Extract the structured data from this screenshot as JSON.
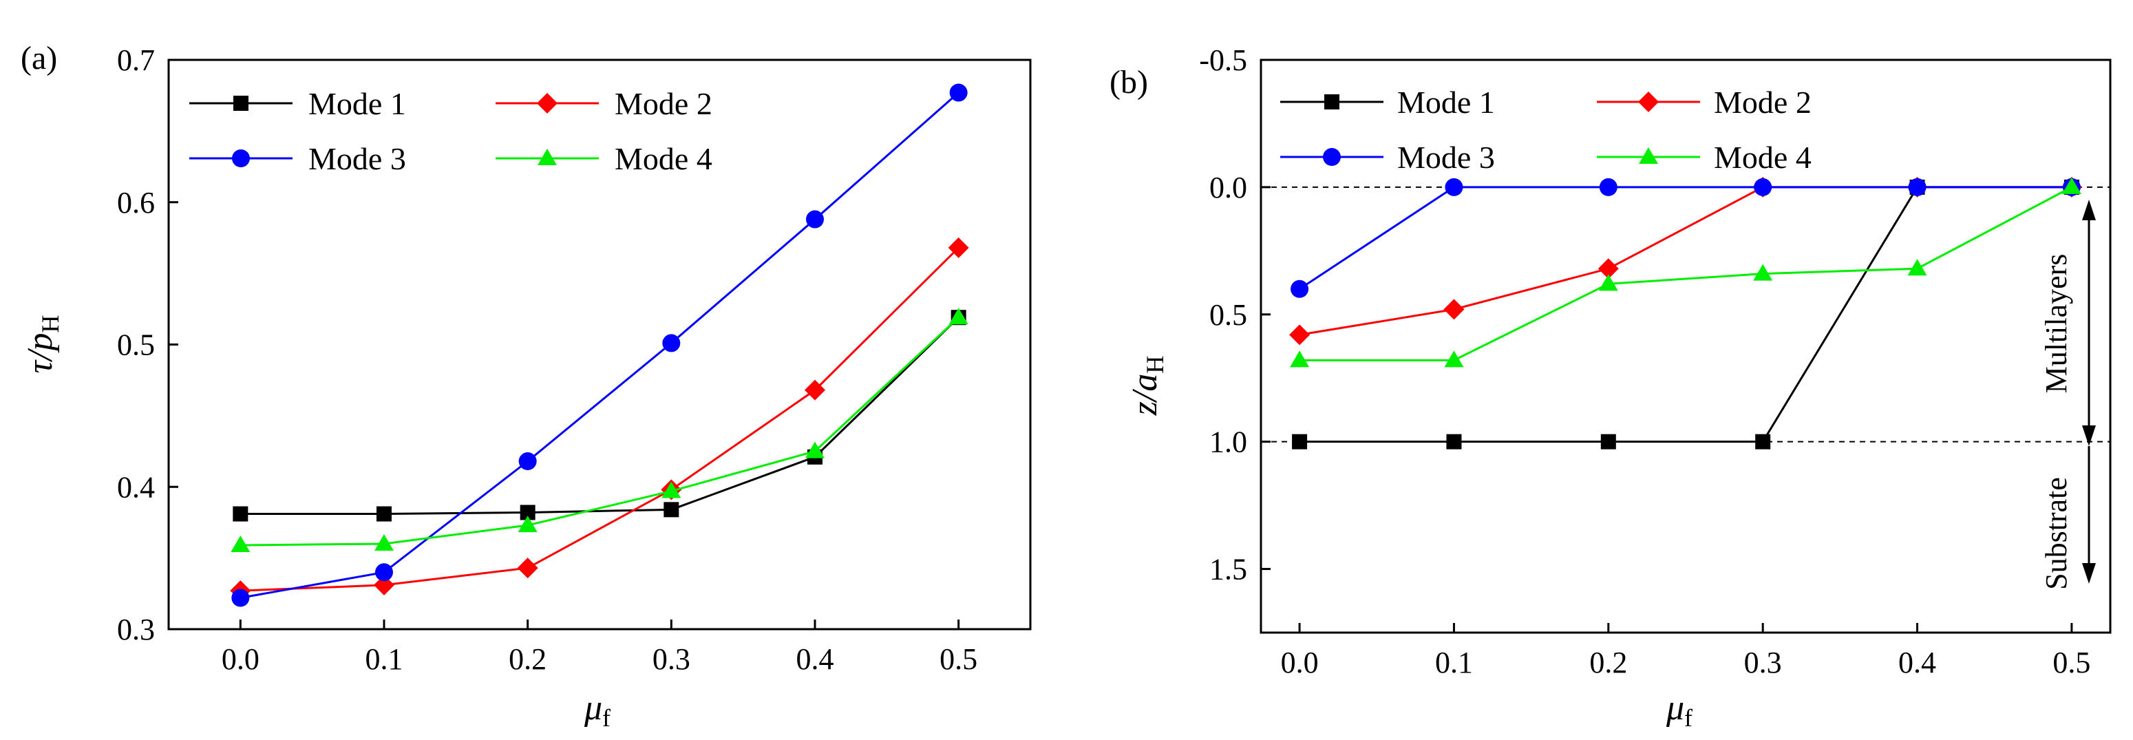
{
  "chart_data": [
    {
      "type": "line",
      "panel_label": "(a)",
      "xlabel": {
        "main": "μ",
        "sub": "f"
      },
      "ylabel": {
        "main": "τ/p",
        "sub": "H"
      },
      "x": [
        0.0,
        0.1,
        0.2,
        0.3,
        0.4,
        0.5
      ],
      "xticks": [
        "0.0",
        "0.1",
        "0.2",
        "0.3",
        "0.4",
        "0.5"
      ],
      "xlim": [
        -0.05,
        0.55
      ],
      "ylim": [
        0.3,
        0.7
      ],
      "yticks": [
        "0.3",
        "0.4",
        "0.5",
        "0.6",
        "0.7"
      ],
      "legend": "top-left",
      "series": [
        {
          "name": "Mode 1",
          "color": "#000000",
          "marker": "square",
          "values": [
            0.381,
            0.381,
            0.382,
            0.384,
            0.421,
            0.519
          ]
        },
        {
          "name": "Mode 2",
          "color": "#ff0000",
          "marker": "diamond",
          "values": [
            0.327,
            0.331,
            0.343,
            0.398,
            0.468,
            0.568
          ]
        },
        {
          "name": "Mode 3",
          "color": "#0000ff",
          "marker": "circle",
          "values": [
            0.322,
            0.34,
            0.418,
            0.501,
            0.588,
            0.677
          ]
        },
        {
          "name": "Mode 4",
          "color": "#00ee00",
          "marker": "triangle",
          "values": [
            0.359,
            0.36,
            0.373,
            0.397,
            0.425,
            0.519
          ]
        }
      ]
    },
    {
      "type": "line",
      "panel_label": "(b)",
      "xlabel": {
        "main": "μ",
        "sub": "f"
      },
      "ylabel": {
        "main": "z/a",
        "sub": "H"
      },
      "x": [
        0.0,
        0.1,
        0.2,
        0.3,
        0.4,
        0.5
      ],
      "xticks": [
        "0.0",
        "0.1",
        "0.2",
        "0.3",
        "0.4",
        "0.5"
      ],
      "xlim": [
        -0.025,
        0.525
      ],
      "ylim": [
        -0.5,
        1.75
      ],
      "y_inverted": true,
      "yticks": [
        "-0.5",
        "0.0",
        "0.5",
        "1.0",
        "1.5"
      ],
      "legend": "top",
      "reference_lines": [
        0.0,
        1.0
      ],
      "regions": [
        {
          "label": "Multilayers",
          "from": 0.0,
          "to": 1.0
        },
        {
          "label": "Substrate",
          "from": 1.0,
          "to": 1.55
        }
      ],
      "series": [
        {
          "name": "Mode 1",
          "color": "#000000",
          "marker": "square",
          "values": [
            1.0,
            1.0,
            1.0,
            1.0,
            0.0,
            0.0
          ]
        },
        {
          "name": "Mode 2",
          "color": "#ff0000",
          "marker": "diamond",
          "values": [
            0.58,
            0.48,
            0.32,
            0.0,
            0.0,
            0.0
          ]
        },
        {
          "name": "Mode 3",
          "color": "#0000ff",
          "marker": "circle",
          "values": [
            0.4,
            0.0,
            0.0,
            0.0,
            0.0,
            0.0
          ]
        },
        {
          "name": "Mode 4",
          "color": "#00ee00",
          "marker": "triangle",
          "values": [
            0.68,
            0.68,
            0.38,
            0.34,
            0.32,
            0.0
          ]
        }
      ]
    }
  ]
}
